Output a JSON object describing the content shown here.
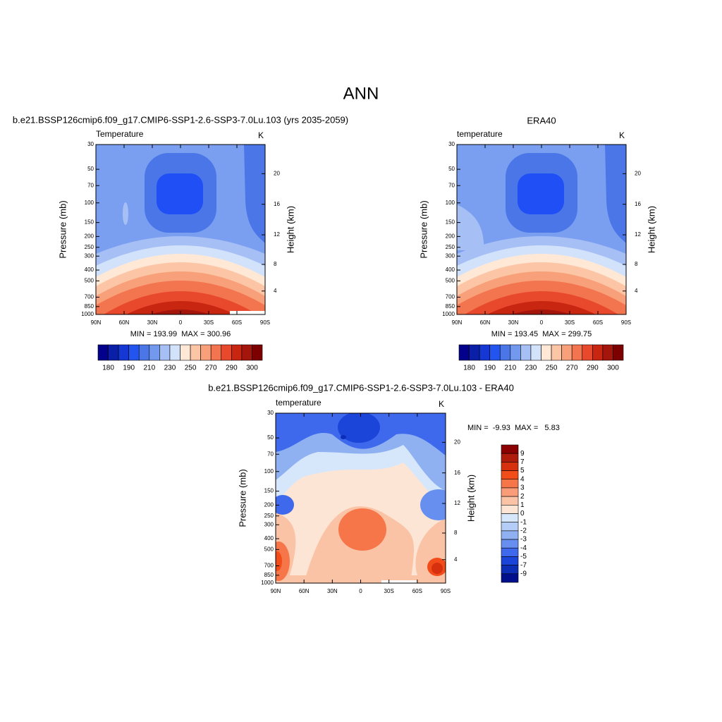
{
  "title": "ANN",
  "chart_data": [
    {
      "type": "contour",
      "title": "b.e21.BSSP126cmip6.f09_g17.CMIP6-SSP1-2.6-SSP3-7.0Lu.103 (yrs 2035-2059)",
      "subtitle_left": "Temperature",
      "subtitle_right": "K",
      "y_label": "Pressure (mb)",
      "y2_label": "Height (km)",
      "xlim": [
        90,
        -90
      ],
      "xticks": [
        {
          "value": 90,
          "label": "90N"
        },
        {
          "value": 60,
          "label": "60N"
        },
        {
          "value": 30,
          "label": "30N"
        },
        0,
        {
          "value": -30,
          "label": "30S"
        },
        {
          "value": -60,
          "label": "60S"
        },
        {
          "value": -90,
          "label": "90S"
        }
      ],
      "ylim": [
        1000,
        30
      ],
      "log_y": true,
      "yticks": [
        30,
        50,
        70,
        100,
        150,
        200,
        250,
        300,
        400,
        500,
        700,
        850,
        1000
      ],
      "y2ticks": [
        4,
        8,
        12,
        16,
        20
      ],
      "stats": "MIN = 193.99  MAX = 300.96",
      "colorbar": {
        "orientation": "horizontal",
        "colors": [
          "#03008c",
          "#0a1fa8",
          "#1538d4",
          "#2255f0",
          "#4a76e8",
          "#7399ee",
          "#a6bff5",
          "#d2e2fb",
          "#ffe8d6",
          "#fcc6a6",
          "#f7a07a",
          "#f27550",
          "#e8492d",
          "#c92612",
          "#a4150c",
          "#7d0000"
        ],
        "labels": [
          180,
          190,
          210,
          230,
          250,
          270,
          290,
          300
        ]
      }
    },
    {
      "type": "contour",
      "title": "ERA40",
      "subtitle_left": "temperature",
      "subtitle_right": "K",
      "y_label": "Pressure (mb)",
      "y2_label": "Height (km)",
      "xlim": [
        90,
        -90
      ],
      "xticks": [
        {
          "value": 90,
          "label": "90N"
        },
        {
          "value": 60,
          "label": "60N"
        },
        {
          "value": 30,
          "label": "30N"
        },
        0,
        {
          "value": -30,
          "label": "30S"
        },
        {
          "value": -60,
          "label": "60S"
        },
        {
          "value": -90,
          "label": "90S"
        }
      ],
      "ylim": [
        1000,
        30
      ],
      "log_y": true,
      "yticks": [
        30,
        50,
        70,
        100,
        150,
        200,
        250,
        300,
        400,
        500,
        700,
        850,
        1000
      ],
      "y2ticks": [
        4,
        8,
        12,
        16,
        20
      ],
      "stats": "MIN = 193.45  MAX = 299.75",
      "colorbar": {
        "orientation": "horizontal",
        "colors": [
          "#03008c",
          "#0a1fa8",
          "#1538d4",
          "#2255f0",
          "#4a76e8",
          "#7399ee",
          "#a6bff5",
          "#d2e2fb",
          "#ffe8d6",
          "#fcc6a6",
          "#f7a07a",
          "#f27550",
          "#e8492d",
          "#c92612",
          "#a4150c",
          "#7d0000"
        ],
        "labels": [
          180,
          190,
          210,
          230,
          250,
          270,
          290,
          300
        ]
      }
    },
    {
      "type": "contour",
      "title": "b.e21.BSSP126cmip6.f09_g17.CMIP6-SSP1-2.6-SSP3-7.0Lu.103 - ERA40",
      "subtitle_left": "temperature",
      "subtitle_right": "K",
      "y_label": "Pressure (mb)",
      "y2_label": "Height (km)",
      "xlim": [
        90,
        -90
      ],
      "xticks": [
        {
          "value": 90,
          "label": "90N"
        },
        {
          "value": 60,
          "label": "60N"
        },
        {
          "value": 30,
          "label": "30N"
        },
        0,
        {
          "value": -30,
          "label": "30S"
        },
        {
          "value": -60,
          "label": "60S"
        },
        {
          "value": -90,
          "label": "90S"
        }
      ],
      "ylim": [
        1000,
        30
      ],
      "log_y": true,
      "yticks": [
        30,
        50,
        70,
        100,
        150,
        200,
        250,
        300,
        400,
        500,
        700,
        850,
        1000
      ],
      "y2ticks": [
        4,
        8,
        12,
        16,
        20
      ],
      "stats": "MIN =  -9.93  MAX =   5.83",
      "colorbar": {
        "orientation": "vertical",
        "colors": [
          "#8b0000",
          "#b01c0c",
          "#d6300f",
          "#f24c1a",
          "#f77649",
          "#f99c77",
          "#fbc3a6",
          "#fde5d5",
          "#d7e7fb",
          "#b4cdf7",
          "#8fb1f2",
          "#668ff0",
          "#3f69ed",
          "#1b44d9",
          "#0c2db6",
          "#00108c"
        ],
        "labels": [
          9,
          7,
          5,
          4,
          3,
          2,
          1,
          0,
          -1,
          -2,
          -3,
          -4,
          -5,
          -7,
          -9
        ]
      }
    }
  ]
}
